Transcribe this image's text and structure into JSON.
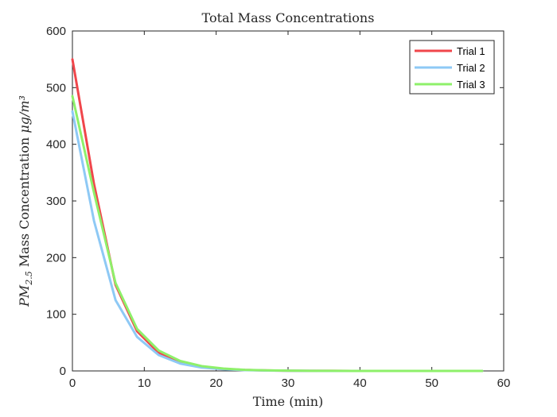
{
  "chart_data": {
    "type": "line",
    "title": "Total Mass Concentrations",
    "xlabel": "Time (min)",
    "ylabel": "PM2.5 Mass Concentration μg/m³",
    "xlim": [
      0,
      60
    ],
    "ylim": [
      0,
      600
    ],
    "xticks": [
      0,
      10,
      20,
      30,
      40,
      50,
      60
    ],
    "yticks": [
      0,
      100,
      200,
      300,
      400,
      500,
      600
    ],
    "grid": false,
    "legend_position": "top-right",
    "x": [
      0,
      3,
      6,
      9,
      12,
      15,
      18,
      21,
      24,
      27,
      30,
      33,
      36,
      39,
      42,
      45,
      48,
      51,
      54,
      57
    ],
    "series": [
      {
        "name": "Trial 1",
        "color": "#f0464b",
        "values": [
          550,
          330,
          152,
          70,
          32,
          15,
          7,
          3.5,
          1.7,
          0.8,
          0.4,
          0.2,
          0.1,
          0.05,
          0,
          0,
          0,
          0,
          0,
          0
        ]
      },
      {
        "name": "Trial 2",
        "color": "#8ec9f5",
        "values": [
          458,
          265,
          125,
          60,
          28,
          13,
          6,
          3,
          1.4,
          0.7,
          0.3,
          0.15,
          0.08,
          0.04,
          0,
          0,
          0,
          0,
          0,
          0
        ]
      },
      {
        "name": "Trial 3",
        "color": "#8ef06a",
        "values": [
          485,
          315,
          155,
          74,
          36,
          17.5,
          8.5,
          4.2,
          2,
          1,
          0.5,
          0.25,
          0.12,
          0.06,
          0,
          0,
          0,
          0,
          0,
          0
        ]
      }
    ]
  }
}
